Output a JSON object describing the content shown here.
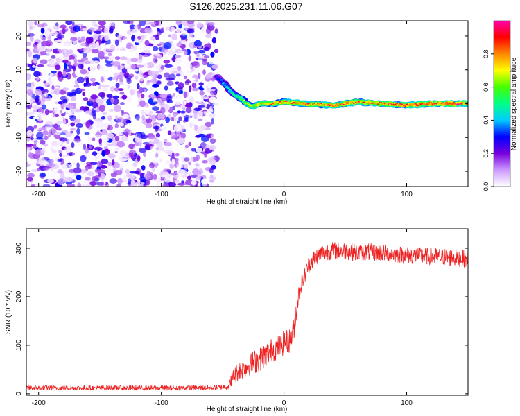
{
  "title": "S126.2025.231.11.06.G07",
  "chart_data": [
    {
      "type": "heatmap",
      "name": "spectrogram",
      "xlabel": "Height of straight line (km)",
      "ylabel": "Frequency (Hz)",
      "xlim": [
        -210,
        150
      ],
      "ylim": [
        -24.5,
        24.5
      ],
      "xticks": [
        -200,
        -100,
        0,
        100
      ],
      "xtick_labels": [
        "-200",
        "-100",
        "0",
        "100"
      ],
      "yticks": [
        -20,
        -10,
        0,
        10,
        20
      ],
      "ytick_labels": [
        "-20",
        "-10",
        "0",
        "10",
        "20"
      ],
      "noise_region_x": [
        -210,
        -55
      ],
      "signal_track": {
        "x": [
          -55,
          -50,
          -45,
          -40,
          -35,
          -30,
          -25,
          -20,
          -10,
          0,
          20,
          40,
          60,
          80,
          100,
          120,
          150
        ],
        "freq": [
          8,
          6.5,
          4.5,
          2.5,
          1.5,
          0,
          -1,
          0,
          0,
          0.5,
          0,
          -0.5,
          0.5,
          0,
          -0.5,
          0,
          0
        ],
        "peak_amplitude": [
          0.3,
          0.4,
          0.5,
          0.55,
          0.6,
          0.65,
          0.7,
          0.75,
          0.8,
          0.8,
          0.85,
          0.85,
          0.85,
          0.85,
          0.9,
          0.9,
          0.9
        ]
      },
      "colorbar": {
        "label": "Normalized spectral amplitude",
        "range": [
          0,
          1
        ],
        "ticks": [
          0.0,
          0.2,
          0.4,
          0.6,
          0.8
        ],
        "tick_labels": [
          "0.0",
          "0.2",
          "0.4",
          "0.6",
          "0.8"
        ],
        "colors": [
          "#ffffff",
          "#cc99ff",
          "#7700dd",
          "#0000ff",
          "#00ccff",
          "#00ff88",
          "#44ff00",
          "#ffff00",
          "#ff8800",
          "#ff0000",
          "#ff00aa"
        ]
      }
    },
    {
      "type": "line",
      "name": "snr",
      "xlabel": "Height of straight line (km)",
      "ylabel": "SNR (10 * v/v)",
      "xlim": [
        -210,
        150
      ],
      "ylim": [
        -3,
        340
      ],
      "xticks": [
        -200,
        -100,
        0,
        100
      ],
      "xtick_labels": [
        "-200",
        "-100",
        "0",
        "100"
      ],
      "yticks": [
        0,
        100,
        200,
        300
      ],
      "ytick_labels": [
        "0",
        "100",
        "200",
        "300"
      ],
      "color": "#ee2222",
      "series": [
        {
          "name": "SNR",
          "x": [
            -210,
            -120,
            -60,
            -45,
            -43,
            -38,
            -30,
            -25,
            -20,
            -15,
            -10,
            -5,
            0,
            5,
            8,
            10,
            12,
            14,
            17,
            20,
            25,
            30,
            40,
            50,
            60,
            70,
            80,
            90,
            100,
            110,
            120,
            130,
            140,
            150
          ],
          "y": [
            12,
            12,
            12,
            15,
            30,
            45,
            55,
            65,
            70,
            80,
            90,
            95,
            105,
            110,
            130,
            170,
            205,
            225,
            245,
            265,
            280,
            290,
            295,
            295,
            290,
            292,
            290,
            288,
            285,
            285,
            283,
            282,
            280,
            278
          ],
          "noise_amplitude": [
            5,
            5,
            5,
            6,
            15,
            20,
            20,
            25,
            25,
            25,
            25,
            25,
            25,
            25,
            25,
            25,
            20,
            18,
            18,
            18,
            18,
            18,
            18,
            18,
            18,
            18,
            18,
            18,
            18,
            18,
            18,
            18,
            18,
            18
          ]
        }
      ]
    }
  ]
}
